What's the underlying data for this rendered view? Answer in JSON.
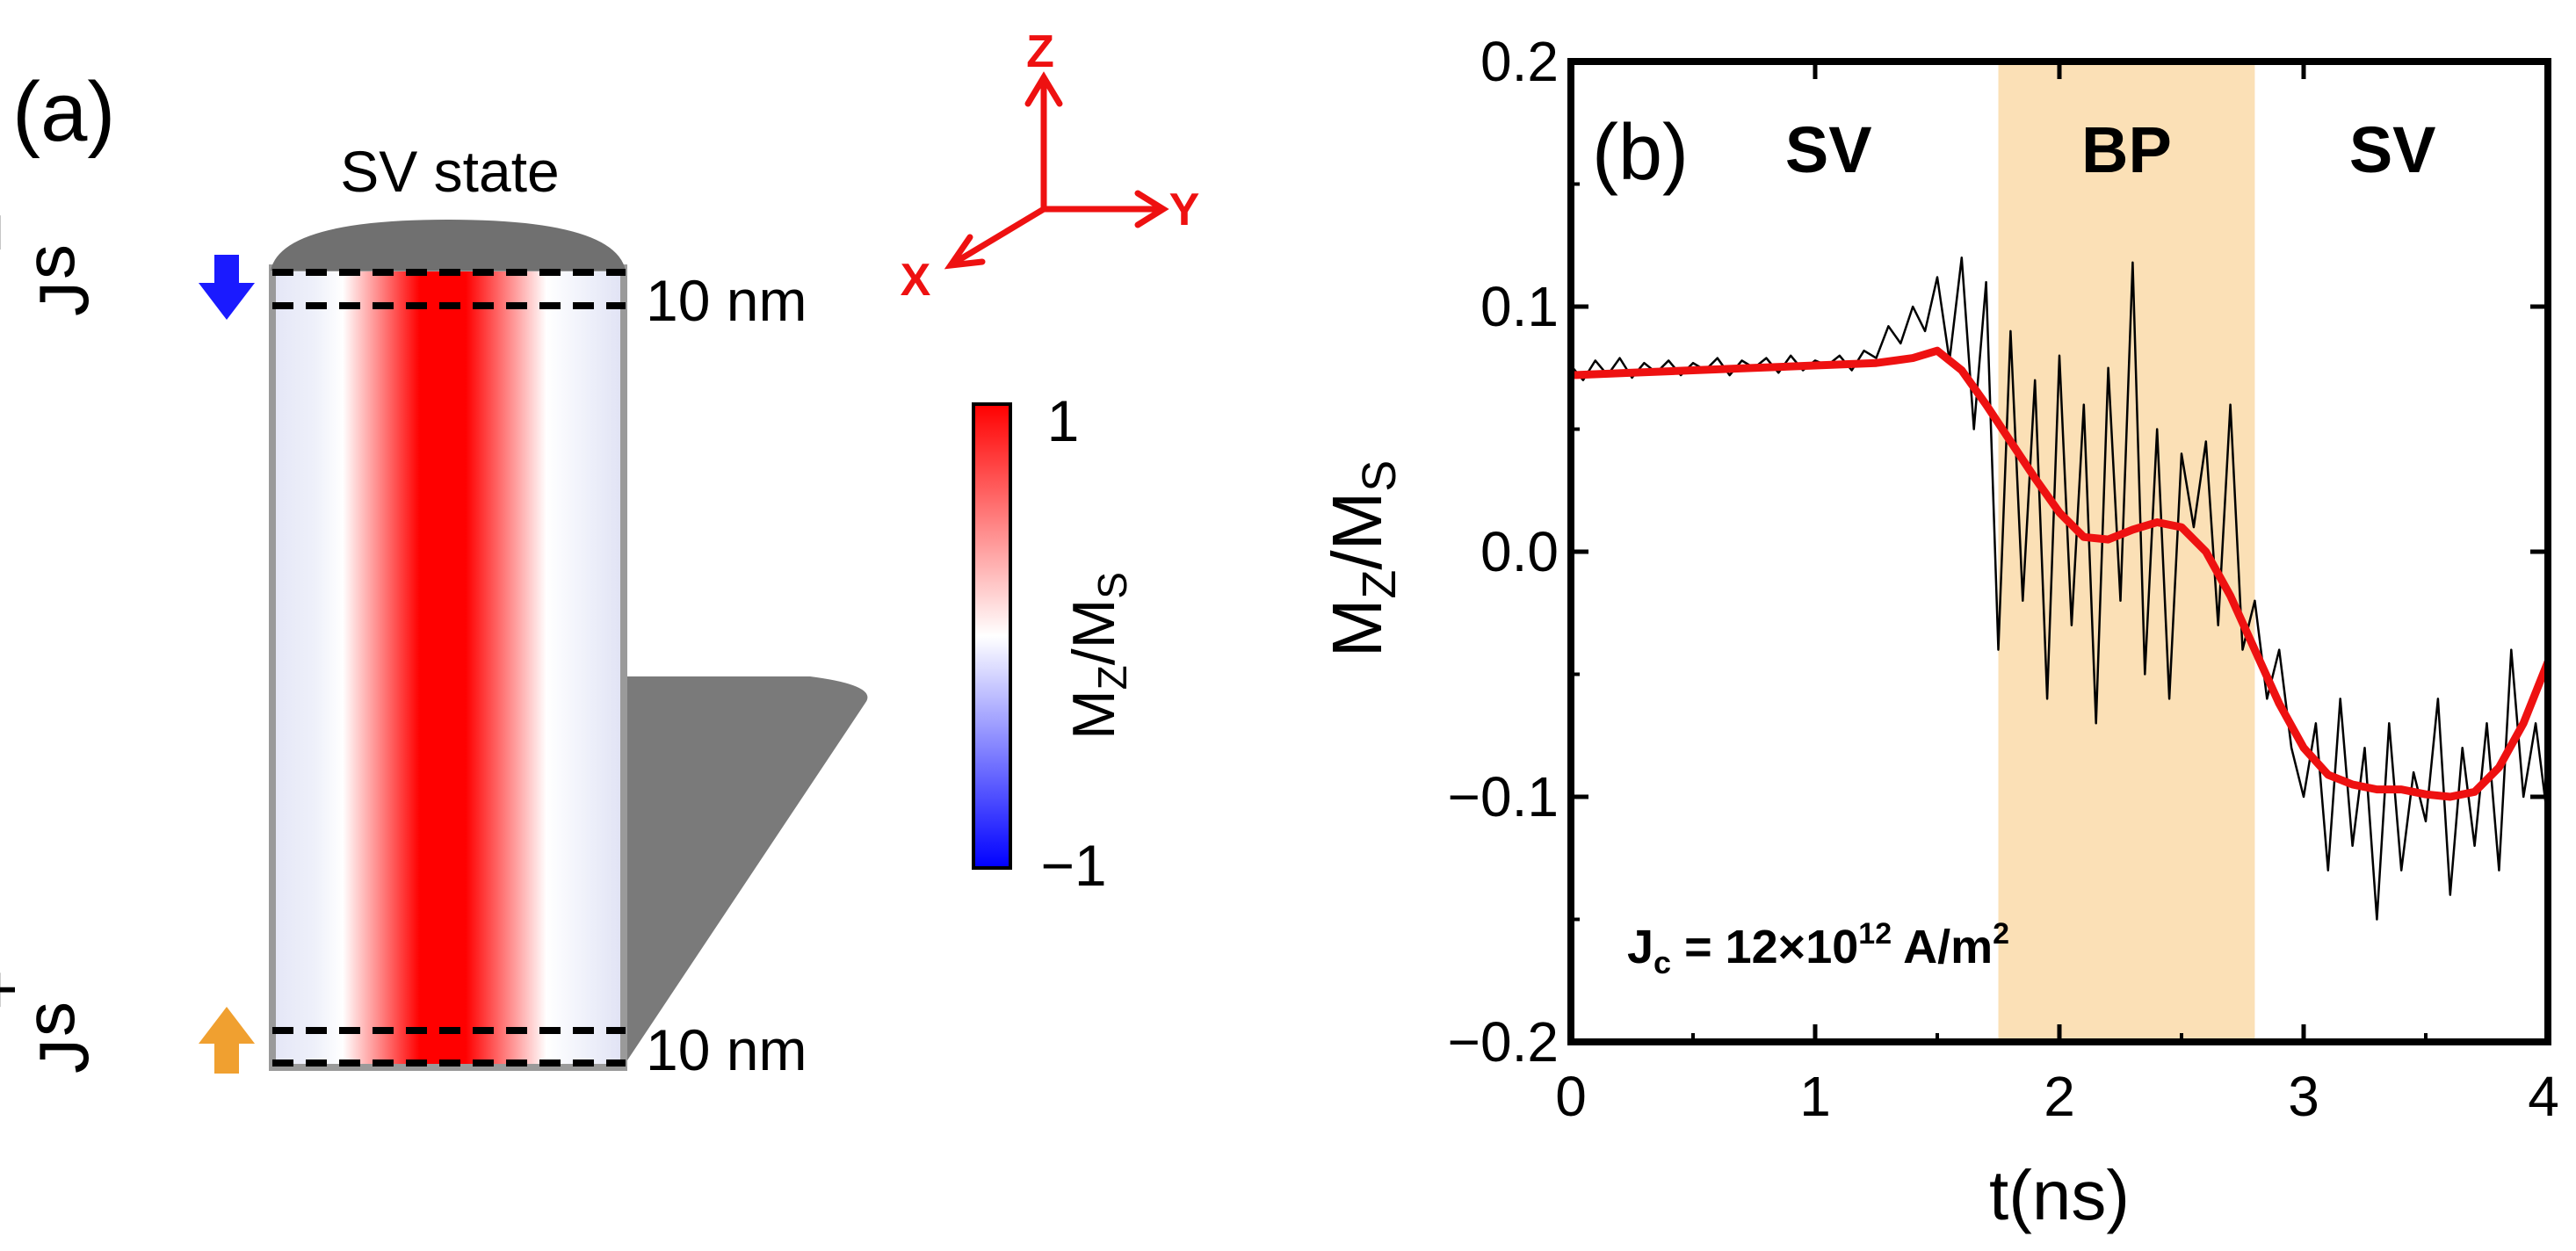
{
  "panel_a": {
    "label": "(a)",
    "title": "SV state",
    "top_current": {
      "base": "J",
      "sub": "s",
      "sup": "−",
      "arrow_color": "#1a1aff"
    },
    "bottom_current": {
      "base": "J",
      "sub": "s",
      "sup": "+",
      "arrow_color": "#f0a030"
    },
    "top_thickness": "10 nm",
    "bottom_thickness": "10 nm",
    "axes": {
      "z": "Z",
      "y": "Y",
      "x": "X",
      "color": "#ee1111"
    },
    "colorbar": {
      "label_base": "M",
      "label_sub1": "Z",
      "label_mid": "/M",
      "label_sub2": "S",
      "max_label": "1",
      "min_label": "−1",
      "colors": {
        "max": "#ff0000",
        "mid": "#ffffff",
        "min": "#0000ff"
      }
    }
  },
  "chart_data": {
    "type": "line",
    "panel_label": "(b)",
    "xlabel": "t(ns)",
    "ylabel": {
      "base": "M",
      "sub1": "Z",
      "mid": "/M",
      "sub2": "S"
    },
    "xlim": [
      0,
      4
    ],
    "ylim": [
      -0.2,
      0.2
    ],
    "xticks": [
      0,
      1,
      2,
      3,
      4
    ],
    "xtick_labels": [
      "0",
      "1",
      "2",
      "3",
      "4"
    ],
    "yticks": [
      0.2,
      0.1,
      0.0,
      -0.1,
      -0.2
    ],
    "ytick_labels": [
      "0.2",
      "0.1",
      "0.0",
      "−0.1",
      "−0.2"
    ],
    "regions": [
      {
        "label": "SV",
        "from": 0,
        "to": 1.75,
        "shaded": false
      },
      {
        "label": "BP",
        "from": 1.75,
        "to": 2.8,
        "shaded": true,
        "color": "#fbe0b6"
      },
      {
        "label": "SV",
        "from": 2.8,
        "to": 4,
        "shaded": false
      }
    ],
    "annotation": {
      "text": "J",
      "sub": "c",
      "mid": " = 12×10",
      "sup": "12",
      "unit": " A/m",
      "unit_sup": "2"
    },
    "series": [
      {
        "name": "raw",
        "color": "#000000",
        "x": [
          0.0,
          0.05,
          0.1,
          0.15,
          0.2,
          0.25,
          0.3,
          0.35,
          0.4,
          0.45,
          0.5,
          0.55,
          0.6,
          0.65,
          0.7,
          0.75,
          0.8,
          0.85,
          0.9,
          0.95,
          1.0,
          1.05,
          1.1,
          1.15,
          1.2,
          1.25,
          1.3,
          1.35,
          1.4,
          1.45,
          1.5,
          1.55,
          1.6,
          1.65,
          1.7,
          1.75,
          1.8,
          1.85,
          1.9,
          1.95,
          2.0,
          2.05,
          2.1,
          2.15,
          2.2,
          2.25,
          2.3,
          2.35,
          2.4,
          2.45,
          2.5,
          2.55,
          2.6,
          2.65,
          2.7,
          2.75,
          2.8,
          2.85,
          2.9,
          2.95,
          3.0,
          3.05,
          3.1,
          3.15,
          3.2,
          3.25,
          3.3,
          3.35,
          3.4,
          3.45,
          3.5,
          3.55,
          3.6,
          3.65,
          3.7,
          3.75,
          3.8,
          3.85,
          3.9,
          3.95,
          4.0
        ],
        "y": [
          0.076,
          0.07,
          0.078,
          0.072,
          0.079,
          0.071,
          0.077,
          0.073,
          0.078,
          0.072,
          0.077,
          0.074,
          0.079,
          0.072,
          0.078,
          0.075,
          0.079,
          0.073,
          0.08,
          0.074,
          0.078,
          0.076,
          0.08,
          0.074,
          0.082,
          0.079,
          0.092,
          0.085,
          0.1,
          0.09,
          0.112,
          0.078,
          0.12,
          0.05,
          0.11,
          -0.04,
          0.09,
          -0.02,
          0.07,
          -0.06,
          0.08,
          -0.03,
          0.06,
          -0.07,
          0.075,
          -0.02,
          0.118,
          -0.05,
          0.05,
          -0.06,
          0.04,
          0.01,
          0.045,
          -0.03,
          0.06,
          -0.04,
          -0.02,
          -0.06,
          -0.04,
          -0.08,
          -0.1,
          -0.07,
          -0.13,
          -0.06,
          -0.12,
          -0.08,
          -0.15,
          -0.07,
          -0.13,
          -0.09,
          -0.11,
          -0.06,
          -0.14,
          -0.08,
          -0.12,
          -0.07,
          -0.13,
          -0.04,
          -0.1,
          -0.07,
          -0.11
        ]
      },
      {
        "name": "smoothed",
        "color": "#ee1111",
        "x": [
          0.0,
          0.25,
          0.5,
          0.75,
          1.0,
          1.25,
          1.4,
          1.5,
          1.6,
          1.7,
          1.8,
          1.9,
          2.0,
          2.1,
          2.2,
          2.3,
          2.4,
          2.5,
          2.6,
          2.7,
          2.8,
          2.9,
          3.0,
          3.1,
          3.2,
          3.3,
          3.4,
          3.5,
          3.6,
          3.7,
          3.8,
          3.9,
          4.0
        ],
        "y": [
          0.072,
          0.073,
          0.074,
          0.075,
          0.076,
          0.077,
          0.079,
          0.082,
          0.074,
          0.06,
          0.045,
          0.03,
          0.016,
          0.006,
          0.005,
          0.009,
          0.012,
          0.01,
          0.0,
          -0.018,
          -0.04,
          -0.062,
          -0.08,
          -0.091,
          -0.095,
          -0.097,
          -0.097,
          -0.099,
          -0.1,
          -0.098,
          -0.088,
          -0.07,
          -0.045
        ]
      }
    ]
  }
}
